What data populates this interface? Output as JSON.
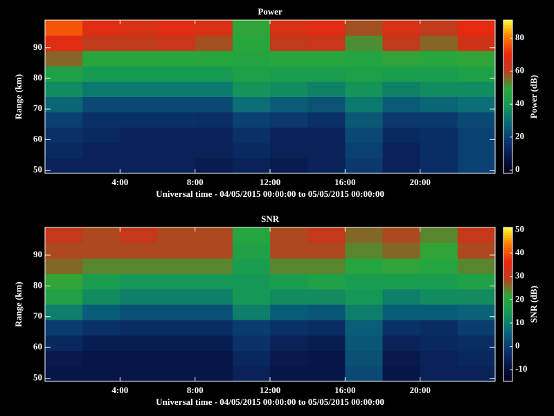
{
  "chart_data": [
    {
      "type": "heatmap",
      "title": "Power",
      "xlabel": "Universal time - 04/05/2015 00:00:00 to 05/05/2015 00:00:00",
      "ylabel": "Range (km)",
      "colorbar_label": "Power (dB)",
      "x_bins": [
        0,
        2,
        4,
        6,
        8,
        10,
        12,
        14,
        16,
        18,
        20,
        22,
        24
      ],
      "y_bins": [
        49,
        54,
        59,
        64,
        69,
        74,
        79,
        84,
        89,
        94,
        99
      ],
      "z": [
        [
          12,
          12,
          12,
          12,
          10,
          12,
          10,
          12,
          18,
          12,
          15,
          20
        ],
        [
          14,
          12,
          12,
          12,
          12,
          14,
          12,
          12,
          20,
          12,
          15,
          20
        ],
        [
          16,
          14,
          12,
          12,
          12,
          16,
          12,
          12,
          22,
          14,
          15,
          20
        ],
        [
          20,
          16,
          16,
          16,
          15,
          20,
          18,
          16,
          25,
          18,
          18,
          22
        ],
        [
          28,
          22,
          22,
          22,
          22,
          30,
          26,
          24,
          32,
          26,
          28,
          30
        ],
        [
          36,
          32,
          32,
          32,
          32,
          38,
          36,
          34,
          38,
          34,
          36,
          36
        ],
        [
          44,
          40,
          40,
          40,
          40,
          44,
          42,
          42,
          44,
          42,
          42,
          44
        ],
        [
          56,
          48,
          48,
          48,
          48,
          46,
          48,
          48,
          46,
          50,
          48,
          50
        ],
        [
          68,
          60,
          60,
          62,
          58,
          48,
          60,
          62,
          52,
          60,
          56,
          64
        ],
        [
          76,
          68,
          66,
          68,
          66,
          50,
          66,
          68,
          58,
          66,
          60,
          70
        ]
      ],
      "xlim": [
        0,
        24
      ],
      "xticks": [
        {
          "value": 4,
          "label": "4:00"
        },
        {
          "value": 8,
          "label": "8:00"
        },
        {
          "value": 12,
          "label": "12:00"
        },
        {
          "value": 16,
          "label": "16:00"
        },
        {
          "value": 20,
          "label": "20:00"
        }
      ],
      "ylim": [
        49,
        99
      ],
      "yticks": [
        50,
        60,
        70,
        80,
        90
      ],
      "zlim": [
        -2,
        91
      ],
      "zticks": [
        0,
        20,
        40,
        60,
        80
      ],
      "colormap": [
        "#000018",
        "#08164a",
        "#0a3a72",
        "#0a6a78",
        "#159a55",
        "#2aa838",
        "#c03a1c",
        "#e82810",
        "#ff7a00",
        "#ffff30"
      ]
    },
    {
      "type": "heatmap",
      "title": "SNR",
      "xlabel": "Universal time - 04/05/2015 00:00:00 to 05/05/2015 00:00:00",
      "ylabel": "Range (km)",
      "colorbar_label": "SNR (dB)",
      "x_bins": [
        0,
        2,
        4,
        6,
        8,
        10,
        12,
        14,
        16,
        18,
        20,
        22,
        24
      ],
      "y_bins": [
        49,
        54,
        59,
        64,
        69,
        74,
        79,
        84,
        89,
        94,
        99
      ],
      "z": [
        [
          -8,
          -8,
          -8,
          -8,
          -8,
          -5,
          -8,
          -8,
          2,
          -8,
          -5,
          -5
        ],
        [
          -7,
          -8,
          -8,
          -8,
          -8,
          -4,
          -7,
          -8,
          3,
          -7,
          -5,
          -4
        ],
        [
          -4,
          -6,
          -6,
          -6,
          -6,
          -2,
          -5,
          -6,
          4,
          -5,
          -4,
          -3
        ],
        [
          0,
          -2,
          -3,
          -3,
          -3,
          0,
          -2,
          -3,
          5,
          -2,
          -3,
          0
        ],
        [
          10,
          5,
          3,
          3,
          3,
          10,
          5,
          4,
          10,
          5,
          5,
          6
        ],
        [
          18,
          12,
          10,
          10,
          10,
          14,
          12,
          12,
          14,
          10,
          12,
          12
        ],
        [
          22,
          16,
          14,
          14,
          14,
          14,
          16,
          18,
          16,
          16,
          16,
          18
        ],
        [
          26,
          24,
          24,
          24,
          24,
          16,
          24,
          24,
          20,
          22,
          20,
          24
        ],
        [
          28,
          28,
          28,
          28,
          28,
          18,
          28,
          28,
          24,
          26,
          22,
          28
        ],
        [
          30,
          28,
          30,
          28,
          28,
          20,
          28,
          30,
          26,
          28,
          24,
          30
        ]
      ],
      "xlim": [
        0,
        24
      ],
      "xticks": [
        {
          "value": 4,
          "label": "4:00"
        },
        {
          "value": 8,
          "label": "8:00"
        },
        {
          "value": 12,
          "label": "12:00"
        },
        {
          "value": 16,
          "label": "16:00"
        },
        {
          "value": 20,
          "label": "20:00"
        }
      ],
      "ylim": [
        49,
        99
      ],
      "yticks": [
        50,
        60,
        70,
        80,
        90
      ],
      "zlim": [
        -15,
        51
      ],
      "zticks": [
        -10,
        0,
        10,
        20,
        30,
        40,
        50
      ],
      "colormap": [
        "#000018",
        "#08164a",
        "#0a3a72",
        "#0a6a78",
        "#159a55",
        "#2aa838",
        "#c03a1c",
        "#e82810",
        "#ff7a00",
        "#ffff30"
      ]
    }
  ]
}
